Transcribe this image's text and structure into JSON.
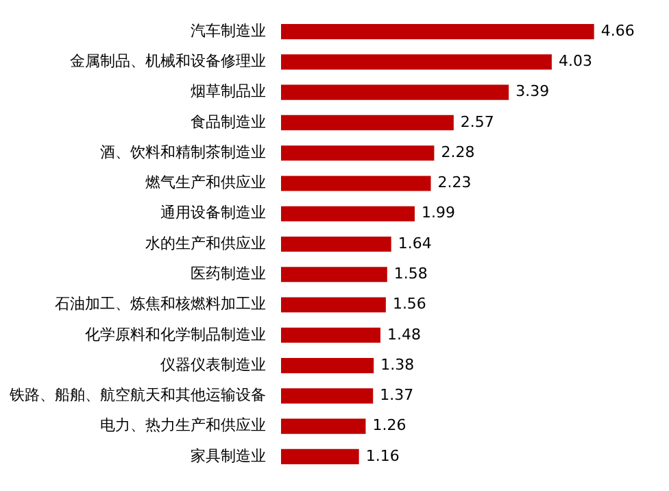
{
  "chart_data": {
    "type": "bar",
    "orientation": "horizontal",
    "categories": [
      "汽车制造业",
      "金属制品、机械和设备修理业",
      "烟草制品业",
      "食品制造业",
      "酒、饮料和精制茶制造业",
      "燃气生产和供应业",
      "通用设备制造业",
      "水的生产和供应业",
      "医药制造业",
      "石油加工、炼焦和核燃料加工业",
      "化学原料和化学制品制造业",
      "仪器仪表制造业",
      "铁路、船舶、航空航天和其他运输设备",
      "电力、热力生产和供应业",
      "家具制造业"
    ],
    "values": [
      4.66,
      4.03,
      3.39,
      2.57,
      2.28,
      2.23,
      1.99,
      1.64,
      1.58,
      1.56,
      1.48,
      1.38,
      1.37,
      1.26,
      1.16
    ],
    "color": "#c00000",
    "data_labels": true,
    "legend": false,
    "tick_labels": "y"
  }
}
